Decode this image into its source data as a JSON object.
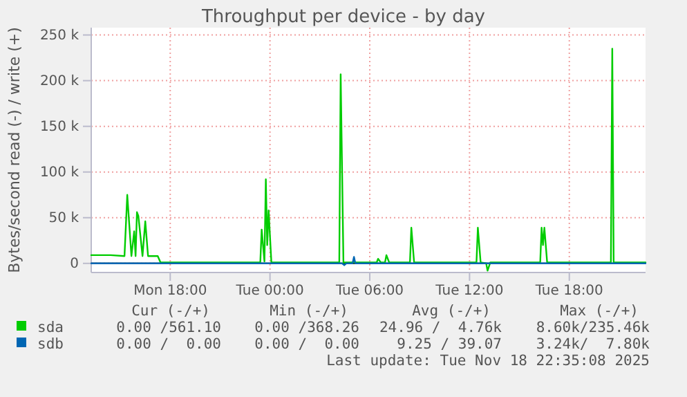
{
  "chart_data": {
    "type": "line",
    "title": "Throughput per device - by day",
    "ylabel": "Bytes/second read (-) / write (+)",
    "xlim": [
      "2025-11-17T13:15",
      "2025-11-18T22:35"
    ],
    "xticks": [
      {
        "value": "2025-11-17T18:00",
        "label": "Mon 18:00"
      },
      {
        "value": "2025-11-18T00:00",
        "label": "Tue 00:00"
      },
      {
        "value": "2025-11-18T06:00",
        "label": "Tue 06:00"
      },
      {
        "value": "2025-11-18T12:00",
        "label": "Tue 12:00"
      },
      {
        "value": "2025-11-18T18:00",
        "label": "Tue 18:00"
      }
    ],
    "ylim": [
      -10000,
      258000
    ],
    "yticks": [
      {
        "value": 0,
        "label": "0"
      },
      {
        "value": 50000,
        "label": "50 k"
      },
      {
        "value": 100000,
        "label": "100 k"
      },
      {
        "value": 150000,
        "label": "150 k"
      },
      {
        "value": 200000,
        "label": "200 k"
      },
      {
        "value": 250000,
        "label": "250 k"
      }
    ],
    "grid": true,
    "legend": "bottom",
    "marker": "none",
    "line_style": "solid",
    "ref_lines": [
      {
        "axis": "y",
        "value": 0,
        "color": "#000000"
      }
    ],
    "series": [
      {
        "name": "sda",
        "color": "#00cc00",
        "x": [
          "2025-11-17T13:15",
          "2025-11-17T14:25",
          "2025-11-17T15:15",
          "2025-11-17T15:25",
          "2025-11-17T15:40",
          "2025-11-17T15:50",
          "2025-11-17T15:55",
          "2025-11-17T16:00",
          "2025-11-17T16:05",
          "2025-11-17T16:20",
          "2025-11-17T16:30",
          "2025-11-17T16:40",
          "2025-11-17T17:15",
          "2025-11-17T17:25",
          "2025-11-17T20:15",
          "2025-11-17T23:25",
          "2025-11-17T23:30",
          "2025-11-17T23:40",
          "2025-11-17T23:45",
          "2025-11-17T23:50",
          "2025-11-17T23:55",
          "2025-11-18T00:05",
          "2025-11-18T04:10",
          "2025-11-18T04:15",
          "2025-11-18T04:25",
          "2025-11-18T06:25",
          "2025-11-18T06:30",
          "2025-11-18T06:40",
          "2025-11-18T06:55",
          "2025-11-18T07:00",
          "2025-11-18T07:10",
          "2025-11-18T08:25",
          "2025-11-18T08:30",
          "2025-11-18T08:40",
          "2025-11-18T12:25",
          "2025-11-18T12:30",
          "2025-11-18T12:40",
          "2025-11-18T13:00",
          "2025-11-18T13:05",
          "2025-11-18T13:15",
          "2025-11-18T16:15",
          "2025-11-18T16:20",
          "2025-11-18T16:25",
          "2025-11-18T16:30",
          "2025-11-18T16:40",
          "2025-11-18T20:30",
          "2025-11-18T20:35",
          "2025-11-18T20:40",
          "2025-11-18T22:35"
        ],
        "values": [
          9000,
          9000,
          8000,
          75000,
          8000,
          35000,
          8000,
          56000,
          52000,
          8000,
          46000,
          8000,
          8000,
          1000,
          1000,
          1000,
          37000,
          2000,
          92000,
          20000,
          58000,
          1000,
          1000,
          207000,
          1000,
          1000,
          5000,
          1000,
          1000,
          9000,
          1000,
          1000,
          39000,
          1000,
          1000,
          39000,
          1000,
          0,
          -8000,
          1000,
          1000,
          39000,
          20000,
          39000,
          1000,
          1000,
          235000,
          1000,
          1000
        ]
      },
      {
        "name": "sdb",
        "color": "#0066b3",
        "x": [
          "2025-11-17T13:15",
          "2025-11-18T04:20",
          "2025-11-18T04:28",
          "2025-11-18T04:35",
          "2025-11-18T04:58",
          "2025-11-18T05:03",
          "2025-11-18T05:08",
          "2025-11-18T22:35"
        ],
        "values": [
          0,
          0,
          -2000,
          0,
          0,
          7000,
          0,
          0
        ]
      }
    ],
    "annotations": [
      "Cur (-/+)",
      "Min (-/+)",
      "Avg (-/+)",
      "Max (-/+)",
      "0.00 /561.10",
      "0.00 /368.26",
      "24.96 /  4.76k",
      "8.60k/235.46k",
      "0.00 /  0.00",
      "0.00 /  0.00",
      "9.25 / 39.07",
      "3.24k/  7.80k",
      "Last update: Tue Nov 18 22:35:08 2025"
    ]
  }
}
